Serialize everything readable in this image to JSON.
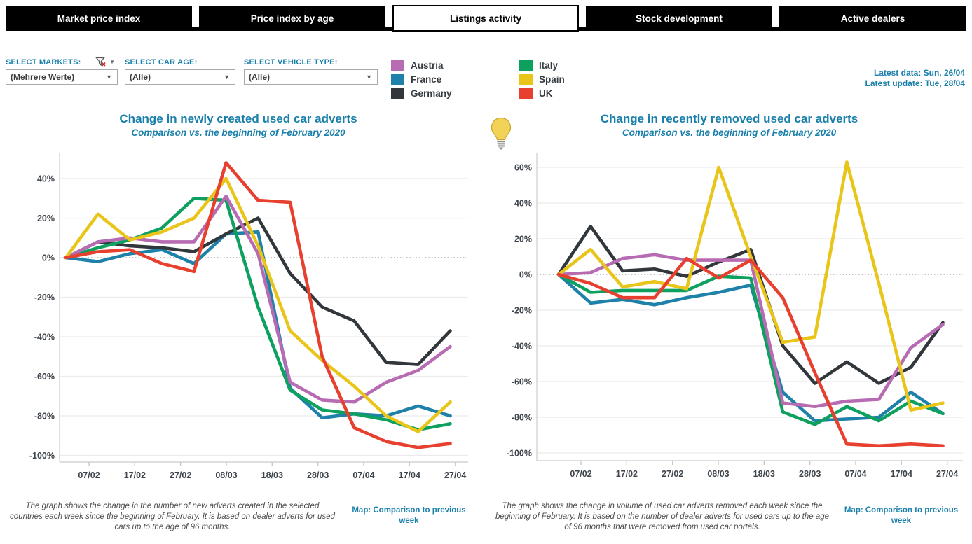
{
  "tabs": [
    {
      "label": "Market price index"
    },
    {
      "label": "Price index by age"
    },
    {
      "label": "Listings activity"
    },
    {
      "label": "Stock development"
    },
    {
      "label": "Active dealers"
    }
  ],
  "filters": {
    "markets_label": "SELECT MARKETS:",
    "markets_value": "(Mehrere Werte)",
    "car_age_label": "SELECT CAR AGE:",
    "car_age_value": "(Alle)",
    "vehicle_type_label": "SELECT VEHICLE TYPE:",
    "vehicle_type_value": "(Alle)",
    "caret": "▼"
  },
  "legend": {
    "items": [
      {
        "label": "Austria",
        "color": "#b76bb2"
      },
      {
        "label": "France",
        "color": "#1d81a9"
      },
      {
        "label": "Germany",
        "color": "#32373c"
      },
      {
        "label": "Italy",
        "color": "#0da05f"
      },
      {
        "label": "Spain",
        "color": "#e9c51a"
      },
      {
        "label": "UK",
        "color": "#e7402e"
      }
    ]
  },
  "status": {
    "latest_data": "Latest data: Sun, 26/04",
    "latest_update": "Latest update: Tue, 28/04"
  },
  "chart_data": [
    {
      "type": "line",
      "title": "Change in newly created used car adverts",
      "subtitle": "Comparison vs. the beginning of February 2020",
      "x_tick_labels": [
        "07/02",
        "17/02",
        "27/02",
        "08/03",
        "18/03",
        "28/03",
        "07/04",
        "17/04",
        "27/04"
      ],
      "y_ticks": [
        40,
        20,
        0,
        -20,
        -40,
        -60,
        -80,
        -100
      ],
      "ylim": [
        -100,
        50
      ],
      "grid": true,
      "zero_line": "dotted",
      "series": [
        {
          "name": "France",
          "color": "#1d81a9",
          "values": [
            0,
            -2,
            2,
            4,
            -3,
            12,
            13,
            -66,
            -81,
            -79,
            -80,
            -75,
            -80
          ]
        },
        {
          "name": "Germany",
          "color": "#32373c",
          "values": [
            0,
            8,
            6,
            5,
            3,
            12,
            20,
            -8,
            -25,
            -32,
            -53,
            -54,
            -37
          ]
        },
        {
          "name": "Italy",
          "color": "#0da05f",
          "values": [
            0,
            5,
            9,
            15,
            30,
            29,
            -25,
            -67,
            -77,
            -79,
            -82,
            -87,
            -84
          ]
        },
        {
          "name": "Austria",
          "color": "#b76bb2",
          "values": [
            0,
            8,
            10,
            8,
            8,
            31,
            2,
            -63,
            -72,
            -73,
            -63,
            -57,
            -45
          ]
        },
        {
          "name": "Spain",
          "color": "#e9c51a",
          "values": [
            0,
            22,
            9,
            13,
            20,
            40,
            6,
            -37,
            -52,
            -65,
            -80,
            -88,
            -73
          ]
        },
        {
          "name": "UK",
          "color": "#e7402e",
          "values": [
            0,
            3,
            4,
            -3,
            -7,
            48,
            29,
            28,
            -50,
            -86,
            -93,
            -96,
            -94
          ]
        }
      ]
    },
    {
      "type": "line",
      "title": "Change in recently removed used car adverts",
      "subtitle": "Comparison vs. the beginning of February 2020",
      "x_tick_labels": [
        "07/02",
        "17/02",
        "27/02",
        "08/03",
        "18/03",
        "28/03",
        "07/04",
        "17/04",
        "27/04"
      ],
      "y_ticks": [
        60,
        40,
        20,
        0,
        -20,
        -40,
        -60,
        -80,
        -100
      ],
      "ylim": [
        -100,
        65
      ],
      "grid": true,
      "zero_line": "dotted",
      "series": [
        {
          "name": "France",
          "color": "#1d81a9",
          "values": [
            0,
            -16,
            -14,
            -17,
            -13,
            -10,
            -6,
            -66,
            -82,
            -81,
            -80,
            -66,
            -78
          ]
        },
        {
          "name": "Germany",
          "color": "#32373c",
          "values": [
            0,
            27,
            2,
            3,
            -1,
            7,
            14,
            -40,
            -61,
            -49,
            -61,
            -52,
            -27
          ]
        },
        {
          "name": "Italy",
          "color": "#0da05f",
          "values": [
            0,
            -10,
            -9,
            -9,
            -9,
            -1,
            -2,
            -77,
            -84,
            -74,
            -82,
            -71,
            -78
          ]
        },
        {
          "name": "Austria",
          "color": "#b76bb2",
          "values": [
            0,
            1,
            9,
            11,
            8,
            8,
            8,
            -72,
            -74,
            -71,
            -70,
            -41,
            -28
          ]
        },
        {
          "name": "Spain",
          "color": "#e9c51a",
          "values": [
            0,
            14,
            -7,
            -4,
            -8,
            60,
            10,
            -38,
            -35,
            63,
            -5,
            -76,
            -72
          ]
        },
        {
          "name": "UK",
          "color": "#e7402e",
          "values": [
            0,
            -5,
            -13,
            -13,
            9,
            -2,
            8,
            -13,
            -55,
            -95,
            -96,
            -95,
            -96
          ]
        }
      ]
    }
  ],
  "footers": {
    "left_note": "The graph shows the change in the number of new adverts created in the selected countries each week since the beginning of February. It is based on dealer adverts for used cars up to the age of 96 months.",
    "right_note": "The graph shows the change in volume of used car adverts removed each week since the beginning of February. It is based on the number of dealer adverts for used cars up to the age of 96 months that were removed from used car portals.",
    "map_link": "Map: Comparison to previous week"
  },
  "icons": {
    "funnel_clear": "funnel-with-red-x",
    "lightbulb": "lightbulb"
  }
}
